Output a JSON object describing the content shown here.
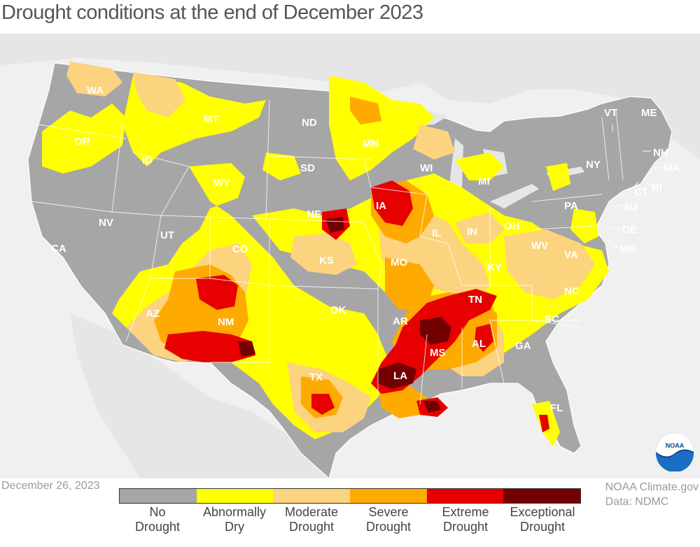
{
  "title": "Drought conditions at the end of December 2023",
  "date": "December 26, 2023",
  "credit": {
    "line1": "NOAA Climate.gov",
    "line2": "Data: NDMC"
  },
  "logo_text": "NOAA",
  "colors": {
    "no_drought": "#a6a6a6",
    "abnormally_dry": "#ffff00",
    "moderate": "#fcd37f",
    "severe": "#ffaa00",
    "extreme": "#e60000",
    "exceptional": "#730000",
    "background_land": "#e6e6e6"
  },
  "legend": [
    {
      "line1": "No",
      "line2": "Drought",
      "color": "#a6a6a6"
    },
    {
      "line1": "Abnormally",
      "line2": "Dry",
      "color": "#ffff00"
    },
    {
      "line1": "Moderate",
      "line2": "Drought",
      "color": "#fcd37f"
    },
    {
      "line1": "Severe",
      "line2": "Drought",
      "color": "#ffaa00"
    },
    {
      "line1": "Extreme",
      "line2": "Drought",
      "color": "#e60000"
    },
    {
      "line1": "Exceptional",
      "line2": "Drought",
      "color": "#730000"
    }
  ],
  "states": [
    "WA",
    "OR",
    "CA",
    "ID",
    "NV",
    "MT",
    "WY",
    "UT",
    "AZ",
    "CO",
    "NM",
    "ND",
    "SD",
    "NE",
    "KS",
    "OK",
    "TX",
    "MN",
    "IA",
    "MO",
    "AR",
    "LA",
    "WI",
    "IL",
    "MI",
    "IN",
    "OH",
    "KY",
    "TN",
    "MS",
    "AL",
    "GA",
    "FL",
    "SC",
    "NC",
    "VA",
    "WV",
    "PA",
    "NY",
    "VT",
    "NH",
    "ME",
    "MA",
    "CT",
    "RI",
    "NJ",
    "DE",
    "MD"
  ]
}
